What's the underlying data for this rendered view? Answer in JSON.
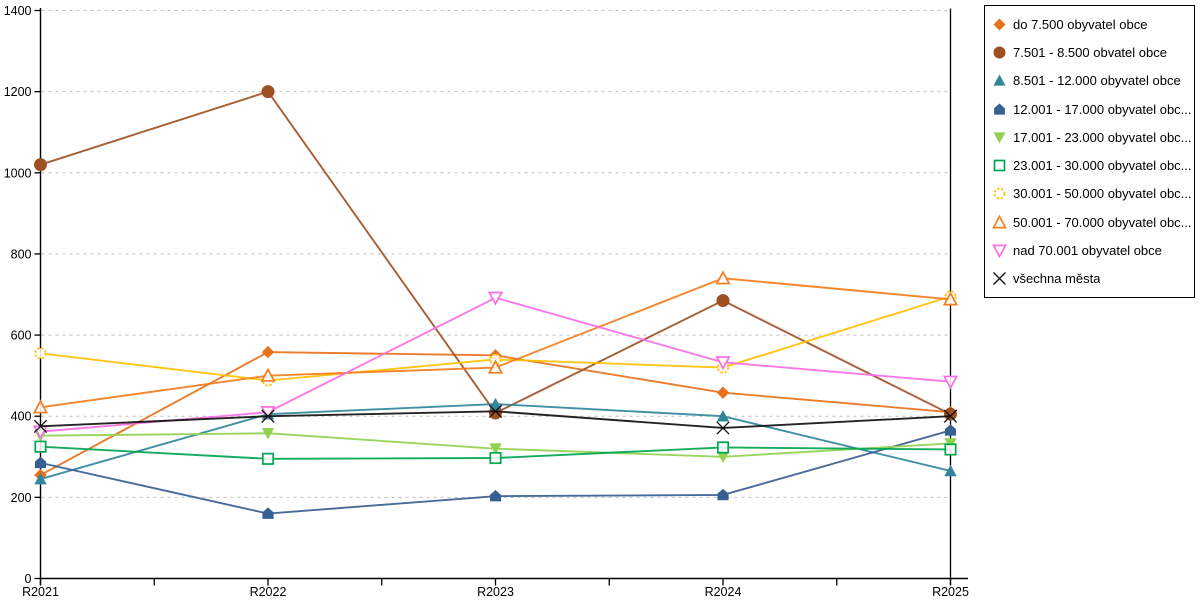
{
  "chart_data": {
    "type": "line",
    "title": "",
    "xlabel": "",
    "ylabel": "",
    "x_categories": [
      "R2021",
      "R2022",
      "R2023",
      "R2024",
      "R2025"
    ],
    "ylim": [
      0,
      1400
    ],
    "y_ticks": [
      0,
      200,
      400,
      600,
      800,
      1000,
      1200,
      1400
    ],
    "grid": "horizontal-dashed",
    "grid_color": "#bfbfbf",
    "axis_color": "#000000",
    "legend_position": "right",
    "series": [
      {
        "name": "do 7.500 obyvatel obce",
        "color": "#E8711C",
        "marker": "diamond",
        "values": [
          255,
          558,
          550,
          458,
          410
        ]
      },
      {
        "name": "7.501 - 8.500 obvatel obce",
        "color": "#9E5021",
        "marker": "circle",
        "values": [
          1020,
          1200,
          408,
          685,
          405
        ]
      },
      {
        "name": "8.501 - 12.000 obyvatel obce",
        "color": "#31859C",
        "marker": "triangle-up",
        "values": [
          245,
          405,
          430,
          400,
          265
        ]
      },
      {
        "name": "12.001 - 17.000 obyvatel obc...",
        "color": "#376092",
        "marker": "pentagon",
        "values": [
          285,
          160,
          203,
          206,
          365
        ]
      },
      {
        "name": "17.001 - 23.000 obyvatel obc...",
        "color": "#92D050",
        "marker": "triangle-down",
        "values": [
          352,
          358,
          320,
          300,
          333
        ]
      },
      {
        "name": "23.001 - 30.000 obyvatel obc...",
        "color": "#00A550",
        "marker": "square-open",
        "values": [
          325,
          295,
          297,
          323,
          318
        ]
      },
      {
        "name": "30.001 - 50.000 obyvatel obc...",
        "color": "#FFC000",
        "marker": "circle-open",
        "values": [
          555,
          488,
          540,
          520,
          695
        ]
      },
      {
        "name": "50.001 - 70.000 obyvatel obc...",
        "color": "#F57D1F",
        "marker": "triangle-open",
        "values": [
          422,
          500,
          520,
          740,
          688
        ]
      },
      {
        "name": "nad 70.001 obyvatel obce",
        "color": "#F96FE4",
        "marker": "triangle-down-open",
        "values": [
          362,
          410,
          692,
          533,
          485
        ]
      },
      {
        "name": "všechna města",
        "color": "#111111",
        "marker": "x-cross",
        "values": [
          375,
          400,
          412,
          371,
          400
        ]
      }
    ]
  }
}
